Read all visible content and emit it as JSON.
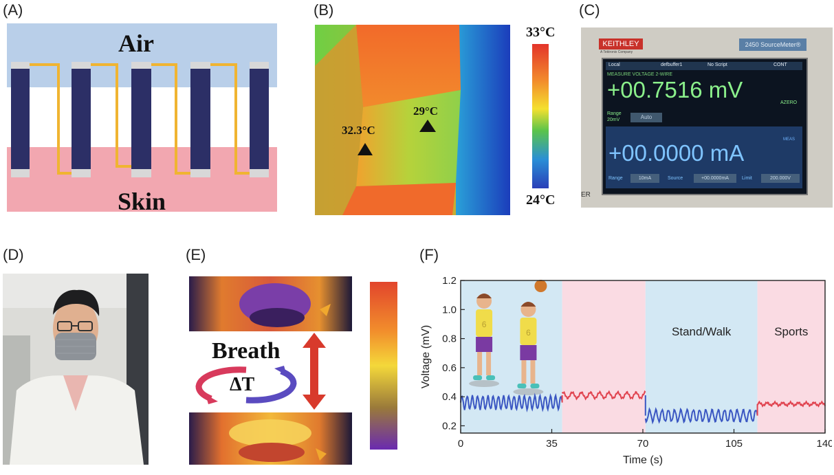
{
  "panels": {
    "A": {
      "label": "(A)",
      "top_text": "Air",
      "bottom_text": "Skin",
      "colors": {
        "air": "#b9cfe9",
        "skin": "#f2a7b0",
        "leg": "#2c2f66",
        "wire": "#f0b431"
      }
    },
    "B": {
      "label": "(B)",
      "spot1": "32.3°C",
      "spot2": "29°C",
      "scale_max": "33°C",
      "scale_min": "24°C"
    },
    "C": {
      "label": "(C)",
      "brand": "KEITHLEY",
      "brand_sub": "A Tektronix Company",
      "model": "2450 SourceMeter®",
      "status_left": "Local",
      "status_buffer": "defbuffer1",
      "status_script": "No Script",
      "status_cont": "CONT",
      "measure_title": "MEASURE VOLTAGE 2-WIRE",
      "voltage_reading": "+00.7516 mV",
      "azero": "AZERO",
      "range_label": "Range",
      "range_value": "20mV",
      "range_button": "Auto",
      "current_reading": "+00.0000 mA",
      "meas": "MEAS",
      "bottom_range_label": "Range",
      "bottom_range_btn": "10mA",
      "source_label": "Source",
      "source_btn": "+00.0000mA",
      "limit_label": "Limit",
      "limit_btn": "200.000V",
      "edge_text": "ER"
    },
    "D": {
      "label": "(D)"
    },
    "E": {
      "label": "(E)",
      "breath": "Breath",
      "delta_t": "ΔT"
    },
    "F": {
      "label": "(F)"
    }
  },
  "chart_data": {
    "type": "line",
    "xlabel": "Time (s)",
    "ylabel": "Voltage (mV)",
    "xlim": [
      0,
      140
    ],
    "ylim": [
      0.15,
      1.2
    ],
    "xticks": [
      0,
      35,
      70,
      105,
      140
    ],
    "yticks": [
      0.2,
      0.4,
      0.6,
      0.8,
      1.0,
      1.2
    ],
    "ytick_labels": [
      "0.2",
      "0.4",
      "0.6",
      "0.8",
      "1.0",
      "1.2"
    ],
    "regions": [
      {
        "start": 0,
        "end": 39,
        "color": "#d3e8f4",
        "label": ""
      },
      {
        "start": 39,
        "end": 71,
        "color": "#fadbe3",
        "label": ""
      },
      {
        "start": 71,
        "end": 114,
        "color": "#d3e8f4",
        "label": "Stand/Walk"
      },
      {
        "start": 114,
        "end": 140,
        "color": "#fadbe3",
        "label": "Sports"
      }
    ],
    "series": [
      {
        "color": "#3a56c2",
        "segment": [
          0,
          39
        ],
        "baseline": 0.36,
        "amplitude": 0.045,
        "period": 2.0
      },
      {
        "color": "#e0434f",
        "segment": [
          39,
          71
        ],
        "baseline": 0.41,
        "amplitude": 0.02,
        "period": 3.5
      },
      {
        "color": "#3a56c2",
        "segment": [
          71,
          114
        ],
        "baseline": 0.27,
        "amplitude": 0.04,
        "period": 2.4
      },
      {
        "color": "#e0434f",
        "segment": [
          114,
          140
        ],
        "baseline": 0.35,
        "amplitude": 0.01,
        "period": 3.0
      }
    ]
  }
}
